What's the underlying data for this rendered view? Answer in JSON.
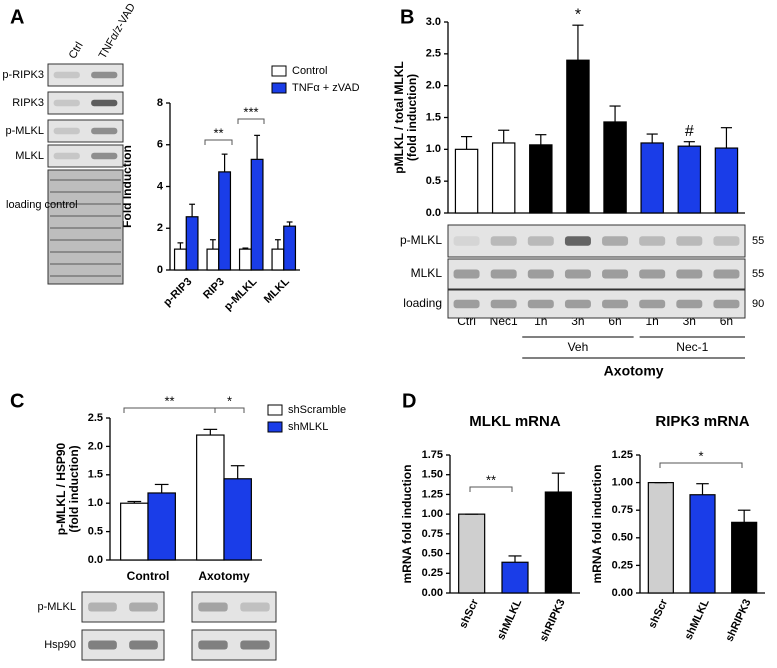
{
  "chart_data": [
    {
      "type": "bar",
      "panel": "A",
      "y_label": [
        "Fold Induction"
      ],
      "lane_labels": [
        "Ctrl",
        "TNFα/z-VAD"
      ],
      "blot_labels": [
        "p-RIPK3",
        "RIPK3",
        "p-MLKL",
        "MLKL",
        "loading control"
      ],
      "categories": [
        "p-RIP3",
        "RIP3",
        "p-MLKL",
        "MLKL"
      ],
      "series": [
        {
          "name": "Control",
          "color": "#ffffff",
          "values": [
            1,
            1,
            1,
            1
          ],
          "errors": [
            0.3,
            0.45,
            0.05,
            0.45
          ]
        },
        {
          "name": "TNFα + zVAD",
          "color": "#1a3de8",
          "values": [
            2.55,
            4.7,
            5.3,
            2.1
          ],
          "errors": [
            0.6,
            0.85,
            1.15,
            0.2
          ]
        }
      ],
      "ylim": [
        0,
        8
      ],
      "yticks": [
        0,
        2,
        4,
        6,
        8
      ],
      "annotations": [
        "**",
        "***"
      ]
    },
    {
      "type": "bar",
      "panel": "B",
      "y_label": [
        "pMLKL / total MLKL",
        "(fold induction)"
      ],
      "categories": [
        "Ctrl",
        "Nec1",
        "1h",
        "3h",
        "6h",
        "1h",
        "3h",
        "6h"
      ],
      "values": [
        1.0,
        1.1,
        1.07,
        2.4,
        1.43,
        1.1,
        1.05,
        1.02
      ],
      "errors": [
        0.2,
        0.2,
        0.16,
        0.55,
        0.25,
        0.14,
        0.07,
        0.32
      ],
      "colors": [
        "#ffffff",
        "#ffffff",
        "#000000",
        "#000000",
        "#000000",
        "#1a3de8",
        "#1a3de8",
        "#1a3de8"
      ],
      "ylim": [
        0,
        3
      ],
      "yticks": [
        {
          "value": 0,
          "label": "0.0"
        },
        0.5,
        {
          "value": 1,
          "label": "1.0"
        },
        1.5,
        {
          "value": 2,
          "label": "2.0"
        },
        2.5,
        {
          "value": 3,
          "label": "3.0"
        }
      ],
      "annotations": [
        "*",
        "#"
      ],
      "blot_labels": [
        "p-MLKL",
        "MLKL",
        "loading"
      ],
      "blot_sizes": [
        55,
        55,
        90
      ],
      "group_labels": [
        "Veh",
        "Nec-1"
      ],
      "group_title": "Axotomy"
    },
    {
      "type": "bar",
      "panel": "C",
      "y_label": [
        "p-MLKL / HSP90",
        "(fold induction)"
      ],
      "categories": [
        "Control",
        "Axotomy"
      ],
      "series": [
        {
          "name": "shScramble",
          "color": "#ffffff",
          "values": [
            1.0,
            2.2
          ],
          "errors": [
            0.03,
            0.1
          ]
        },
        {
          "name": "shMLKL",
          "color": "#1a3de8",
          "values": [
            1.18,
            1.43
          ],
          "errors": [
            0.15,
            0.23
          ]
        }
      ],
      "ylim": [
        0,
        2.5
      ],
      "yticks": [
        {
          "value": 0,
          "label": "0.0"
        },
        0.5,
        {
          "value": 1,
          "label": "1.0"
        },
        1.5,
        {
          "value": 2,
          "label": "2.0"
        },
        2.5
      ],
      "annotations": [
        "**",
        "*"
      ],
      "blot_labels": [
        "p-MLKL",
        "Hsp90"
      ]
    },
    {
      "type": "bar",
      "panel": "D",
      "title": "MLKL mRNA",
      "y_label": [
        "mRNA fold induction"
      ],
      "categories": [
        "shScr",
        "shMLKL",
        "shRIPK3"
      ],
      "values": [
        1.0,
        0.39,
        1.28
      ],
      "errors": [
        0,
        0.08,
        0.24
      ],
      "colors": [
        "#cfcfcf",
        "#1a3de8",
        "#000000"
      ],
      "ylim": [
        0,
        1.75
      ],
      "yticks": [
        {
          "value": 0,
          "label": "0.00"
        },
        0.25,
        {
          "value": 0.5,
          "label": "0.50"
        },
        0.75,
        {
          "value": 1,
          "label": "1.00"
        },
        1.25,
        {
          "value": 1.5,
          "label": "1.50"
        },
        1.75
      ],
      "annotations": [
        "**"
      ]
    },
    {
      "type": "bar",
      "title": "RIPK3 mRNA",
      "y_label": [
        "mRNA fold induction"
      ],
      "categories": [
        "shScr",
        "shMLKL",
        "shRIPK3"
      ],
      "values": [
        1.0,
        0.89,
        0.64
      ],
      "errors": [
        0,
        0.1,
        0.11
      ],
      "colors": [
        "#cfcfcf",
        "#1a3de8",
        "#000000"
      ],
      "ylim": [
        0,
        1.25
      ],
      "yticks": [
        {
          "value": 0,
          "label": "0.00"
        },
        0.25,
        {
          "value": 0.5,
          "label": "0.50"
        },
        0.75,
        {
          "value": 1,
          "label": "1.00"
        },
        1.25
      ],
      "annotations": [
        "*"
      ]
    }
  ]
}
